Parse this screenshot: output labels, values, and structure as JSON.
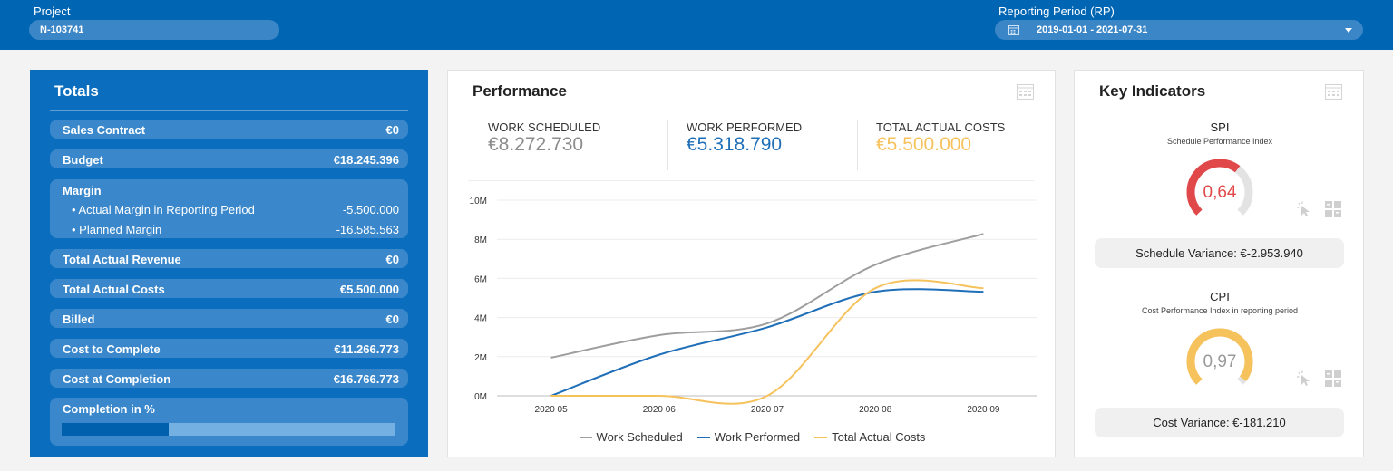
{
  "header": {
    "project_label": "Project",
    "project_value": "N-103741",
    "period_label": "Reporting Period (RP)",
    "period_value": "2019-01-01 - 2021-07-31"
  },
  "totals": {
    "title": "Totals",
    "sales_contract": {
      "label": "Sales Contract",
      "value": "€0"
    },
    "budget": {
      "label": "Budget",
      "value": "€18.245.396"
    },
    "margin": {
      "label": "Margin",
      "actual_label": "• Actual Margin in Reporting Period",
      "actual_value": "-5.500.000",
      "planned_label": "• Planned Margin",
      "planned_value": "-16.585.563"
    },
    "total_actual_revenue": {
      "label": "Total Actual Revenue",
      "value": "€0"
    },
    "total_actual_costs": {
      "label": "Total Actual Costs",
      "value": "€5.500.000"
    },
    "billed": {
      "label": "Billed",
      "value": "€0"
    },
    "cost_to_complete": {
      "label": "Cost to Complete",
      "value": "€11.266.773"
    },
    "cost_at_completion": {
      "label": "Cost at Completion",
      "value": "€16.766.773"
    },
    "completion": {
      "label": "Completion in %",
      "fraction": 0.32
    }
  },
  "performance": {
    "title": "Performance",
    "work_scheduled_label": "WORK SCHEDULED",
    "work_scheduled_value": "€8.272.730",
    "work_performed_label": "WORK PERFORMED",
    "work_performed_value": "€5.318.790",
    "total_actual_costs_label": "TOTAL ACTUAL COSTS",
    "total_actual_costs_value": "€5.500.000"
  },
  "chart_data": {
    "type": "line",
    "title": "",
    "xlabel": "",
    "ylabel": "",
    "x": [
      "2020 05",
      "2020 06",
      "2020 07",
      "2020 08",
      "2020 09"
    ],
    "y_ticks": [
      "0M",
      "2M",
      "4M",
      "6M",
      "8M",
      "10M"
    ],
    "ylim": [
      0,
      10000000
    ],
    "grid": true,
    "legend": "bottom",
    "series": [
      {
        "name": "Work Scheduled",
        "color": "#9e9e9e",
        "values": [
          1950000,
          3100000,
          3700000,
          6700000,
          8272730
        ]
      },
      {
        "name": "Work Performed",
        "color": "#1f6fb8",
        "values": [
          0,
          2100000,
          3500000,
          5318790,
          5318790
        ]
      },
      {
        "name": "Total Actual Costs",
        "color": "#f6c25c",
        "values": [
          0,
          0,
          0,
          5500000,
          5500000
        ]
      }
    ]
  },
  "key_indicators": {
    "title": "Key Indicators",
    "spi": {
      "name": "SPI",
      "description": "Schedule Performance Index",
      "value": "0,64",
      "ratio": 0.64,
      "color": "#e0484a",
      "variance": "Schedule Variance: €-2.953.940"
    },
    "cpi": {
      "name": "CPI",
      "description": "Cost Performance Index in reporting period",
      "value": "0,97",
      "ratio": 0.97,
      "color": "#f6c25c",
      "variance": "Cost Variance: €-181.210"
    }
  },
  "icons": [
    "calendar-icon",
    "chevron-down-icon",
    "pointer-icon",
    "tiles-icon"
  ]
}
